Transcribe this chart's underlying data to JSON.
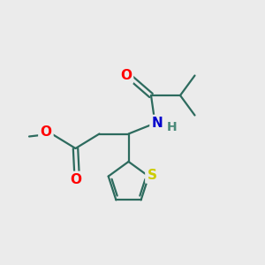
{
  "background_color": "#ebebeb",
  "bond_color": "#2d6b5e",
  "bond_width": 1.6,
  "atom_colors": {
    "O": "#ff0000",
    "N": "#0000cc",
    "S": "#cccc00",
    "H": "#4a8a7a",
    "C": "#2d6b5e"
  },
  "font_size": 10,
  "figsize": [
    3.0,
    3.0
  ],
  "dpi": 100,
  "xlim": [
    0,
    10
  ],
  "ylim": [
    0,
    10
  ]
}
